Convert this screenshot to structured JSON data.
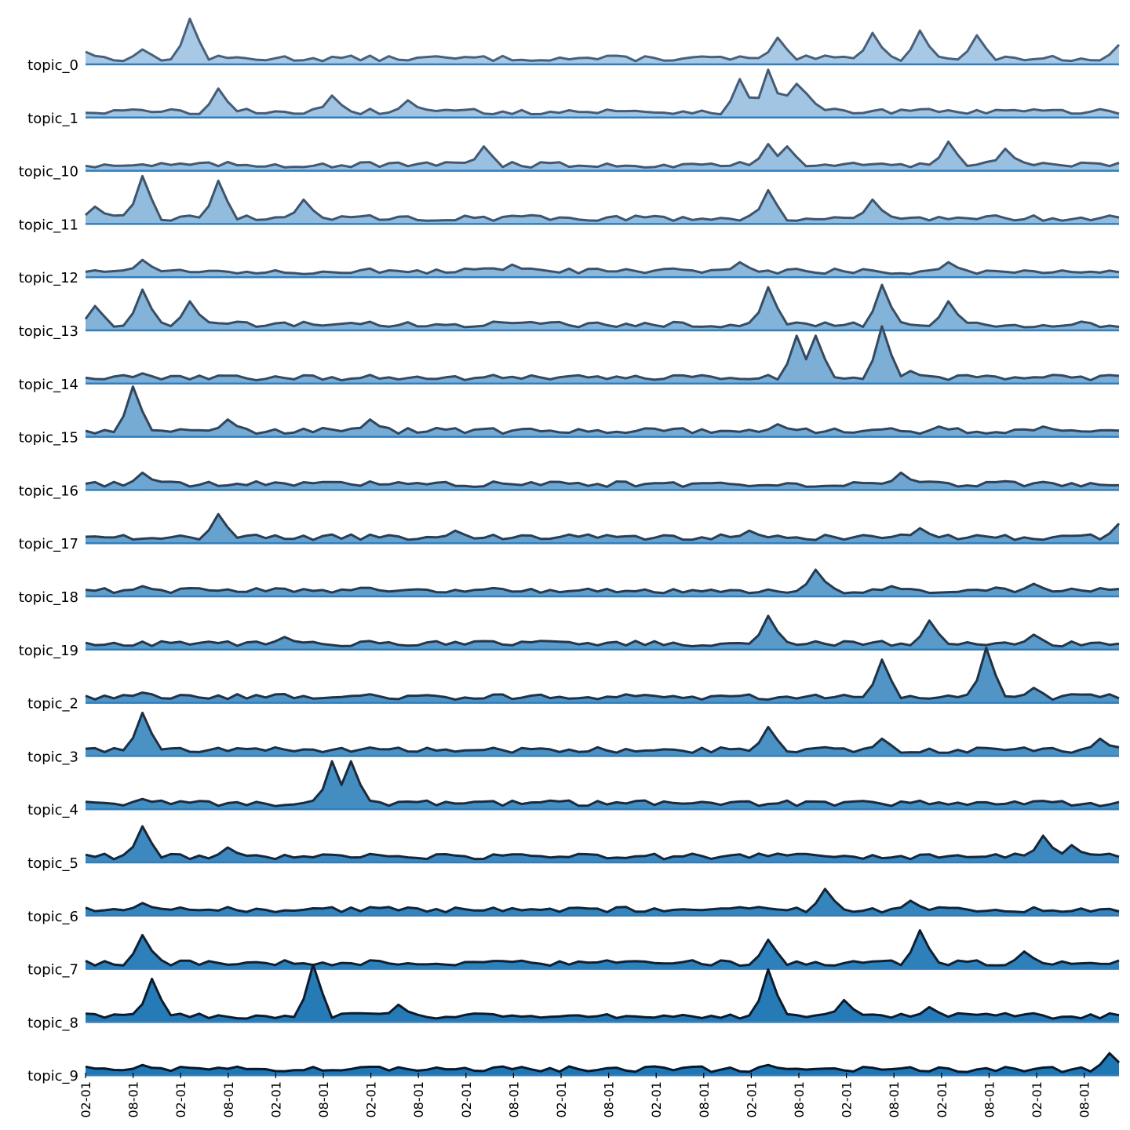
{
  "chart_data": {
    "type": "area",
    "title": "",
    "xlabel": "",
    "ylabel": "",
    "grid": false,
    "legend": "none",
    "layout": "ridgeline",
    "x_tick_labels": [
      "02-01",
      "08-01",
      "02-01",
      "08-01",
      "02-01",
      "08-01",
      "02-01",
      "08-01",
      "02-01",
      "08-01",
      "02-01",
      "08-01",
      "02-01",
      "08-01",
      "02-01",
      "08-01",
      "02-01",
      "08-01",
      "02-01",
      "08-01",
      "02-01",
      "08-01"
    ],
    "colors": {
      "fill_start": "#a8c9e6",
      "fill_end": "#1f77b4",
      "line_start": "#4a6078",
      "line_end": "#0b1726",
      "baseline": "#2f7fbf"
    },
    "series": [
      {
        "name": "topic_0",
        "peaks": [
          [
            0,
            0.25
          ],
          [
            6,
            0.3
          ],
          [
            11,
            0.95
          ],
          [
            73,
            0.55
          ],
          [
            83,
            0.65
          ],
          [
            88,
            0.7
          ],
          [
            94,
            0.6
          ],
          [
            109,
            0.4
          ]
        ]
      },
      {
        "name": "topic_1",
        "peaks": [
          [
            14,
            0.6
          ],
          [
            26,
            0.45
          ],
          [
            34,
            0.35
          ],
          [
            69,
            0.8
          ],
          [
            72,
            1.0
          ],
          [
            74,
            0.45
          ],
          [
            75,
            0.7
          ],
          [
            76,
            0.5
          ]
        ]
      },
      {
        "name": "topic_10",
        "peaks": [
          [
            42,
            0.5
          ],
          [
            72,
            0.55
          ],
          [
            74,
            0.5
          ],
          [
            91,
            0.6
          ],
          [
            97,
            0.45
          ]
        ]
      },
      {
        "name": "topic_11",
        "peaks": [
          [
            1,
            0.35
          ],
          [
            6,
            1.0
          ],
          [
            14,
            0.9
          ],
          [
            23,
            0.5
          ],
          [
            72,
            0.7
          ],
          [
            83,
            0.5
          ]
        ]
      },
      {
        "name": "topic_12",
        "peaks": [
          [
            6,
            0.35
          ],
          [
            45,
            0.25
          ],
          [
            69,
            0.3
          ],
          [
            91,
            0.3
          ]
        ]
      },
      {
        "name": "topic_13",
        "peaks": [
          [
            1,
            0.5
          ],
          [
            6,
            0.85
          ],
          [
            11,
            0.6
          ],
          [
            72,
            0.9
          ],
          [
            84,
            0.95
          ],
          [
            91,
            0.6
          ]
        ]
      },
      {
        "name": "topic_14",
        "peaks": [
          [
            6,
            0.2
          ],
          [
            75,
            1.0
          ],
          [
            77,
            1.0
          ],
          [
            84,
            1.2
          ],
          [
            87,
            0.25
          ],
          [
            95,
            0.15
          ]
        ]
      },
      {
        "name": "topic_15",
        "peaks": [
          [
            5,
            1.05
          ],
          [
            15,
            0.35
          ],
          [
            30,
            0.35
          ],
          [
            73,
            0.25
          ],
          [
            90,
            0.2
          ],
          [
            101,
            0.2
          ]
        ]
      },
      {
        "name": "topic_16",
        "peaks": [
          [
            6,
            0.35
          ],
          [
            86,
            0.35
          ]
        ]
      },
      {
        "name": "topic_17",
        "peaks": [
          [
            14,
            0.6
          ],
          [
            39,
            0.25
          ],
          [
            70,
            0.25
          ],
          [
            88,
            0.3
          ],
          [
            109,
            0.4
          ]
        ]
      },
      {
        "name": "topic_18",
        "peaks": [
          [
            6,
            0.2
          ],
          [
            77,
            0.55
          ],
          [
            85,
            0.2
          ],
          [
            100,
            0.25
          ]
        ]
      },
      {
        "name": "topic_19",
        "peaks": [
          [
            21,
            0.25
          ],
          [
            72,
            0.7
          ],
          [
            89,
            0.6
          ],
          [
            100,
            0.3
          ]
        ]
      },
      {
        "name": "topic_2",
        "peaks": [
          [
            6,
            0.2
          ],
          [
            84,
            0.9
          ],
          [
            95,
            1.15
          ],
          [
            100,
            0.3
          ]
        ]
      },
      {
        "name": "topic_3",
        "peaks": [
          [
            6,
            0.9
          ],
          [
            72,
            0.6
          ],
          [
            84,
            0.35
          ],
          [
            107,
            0.35
          ]
        ]
      },
      {
        "name": "topic_4",
        "peaks": [
          [
            26,
            1.0
          ],
          [
            28,
            1.0
          ],
          [
            6,
            0.2
          ]
        ]
      },
      {
        "name": "topic_5",
        "peaks": [
          [
            6,
            0.75
          ],
          [
            15,
            0.3
          ],
          [
            101,
            0.55
          ],
          [
            104,
            0.35
          ]
        ]
      },
      {
        "name": "topic_6",
        "peaks": [
          [
            6,
            0.25
          ],
          [
            78,
            0.55
          ],
          [
            87,
            0.3
          ]
        ]
      },
      {
        "name": "topic_7",
        "peaks": [
          [
            6,
            0.7
          ],
          [
            72,
            0.6
          ],
          [
            88,
            0.8
          ],
          [
            99,
            0.35
          ]
        ]
      },
      {
        "name": "topic_8",
        "peaks": [
          [
            7,
            0.9
          ],
          [
            24,
            1.2
          ],
          [
            33,
            0.35
          ],
          [
            72,
            1.1
          ],
          [
            80,
            0.45
          ],
          [
            89,
            0.3
          ]
        ]
      },
      {
        "name": "topic_9",
        "peaks": [
          [
            6,
            0.2
          ],
          [
            72,
            0.2
          ],
          [
            108,
            0.45
          ]
        ]
      }
    ]
  }
}
